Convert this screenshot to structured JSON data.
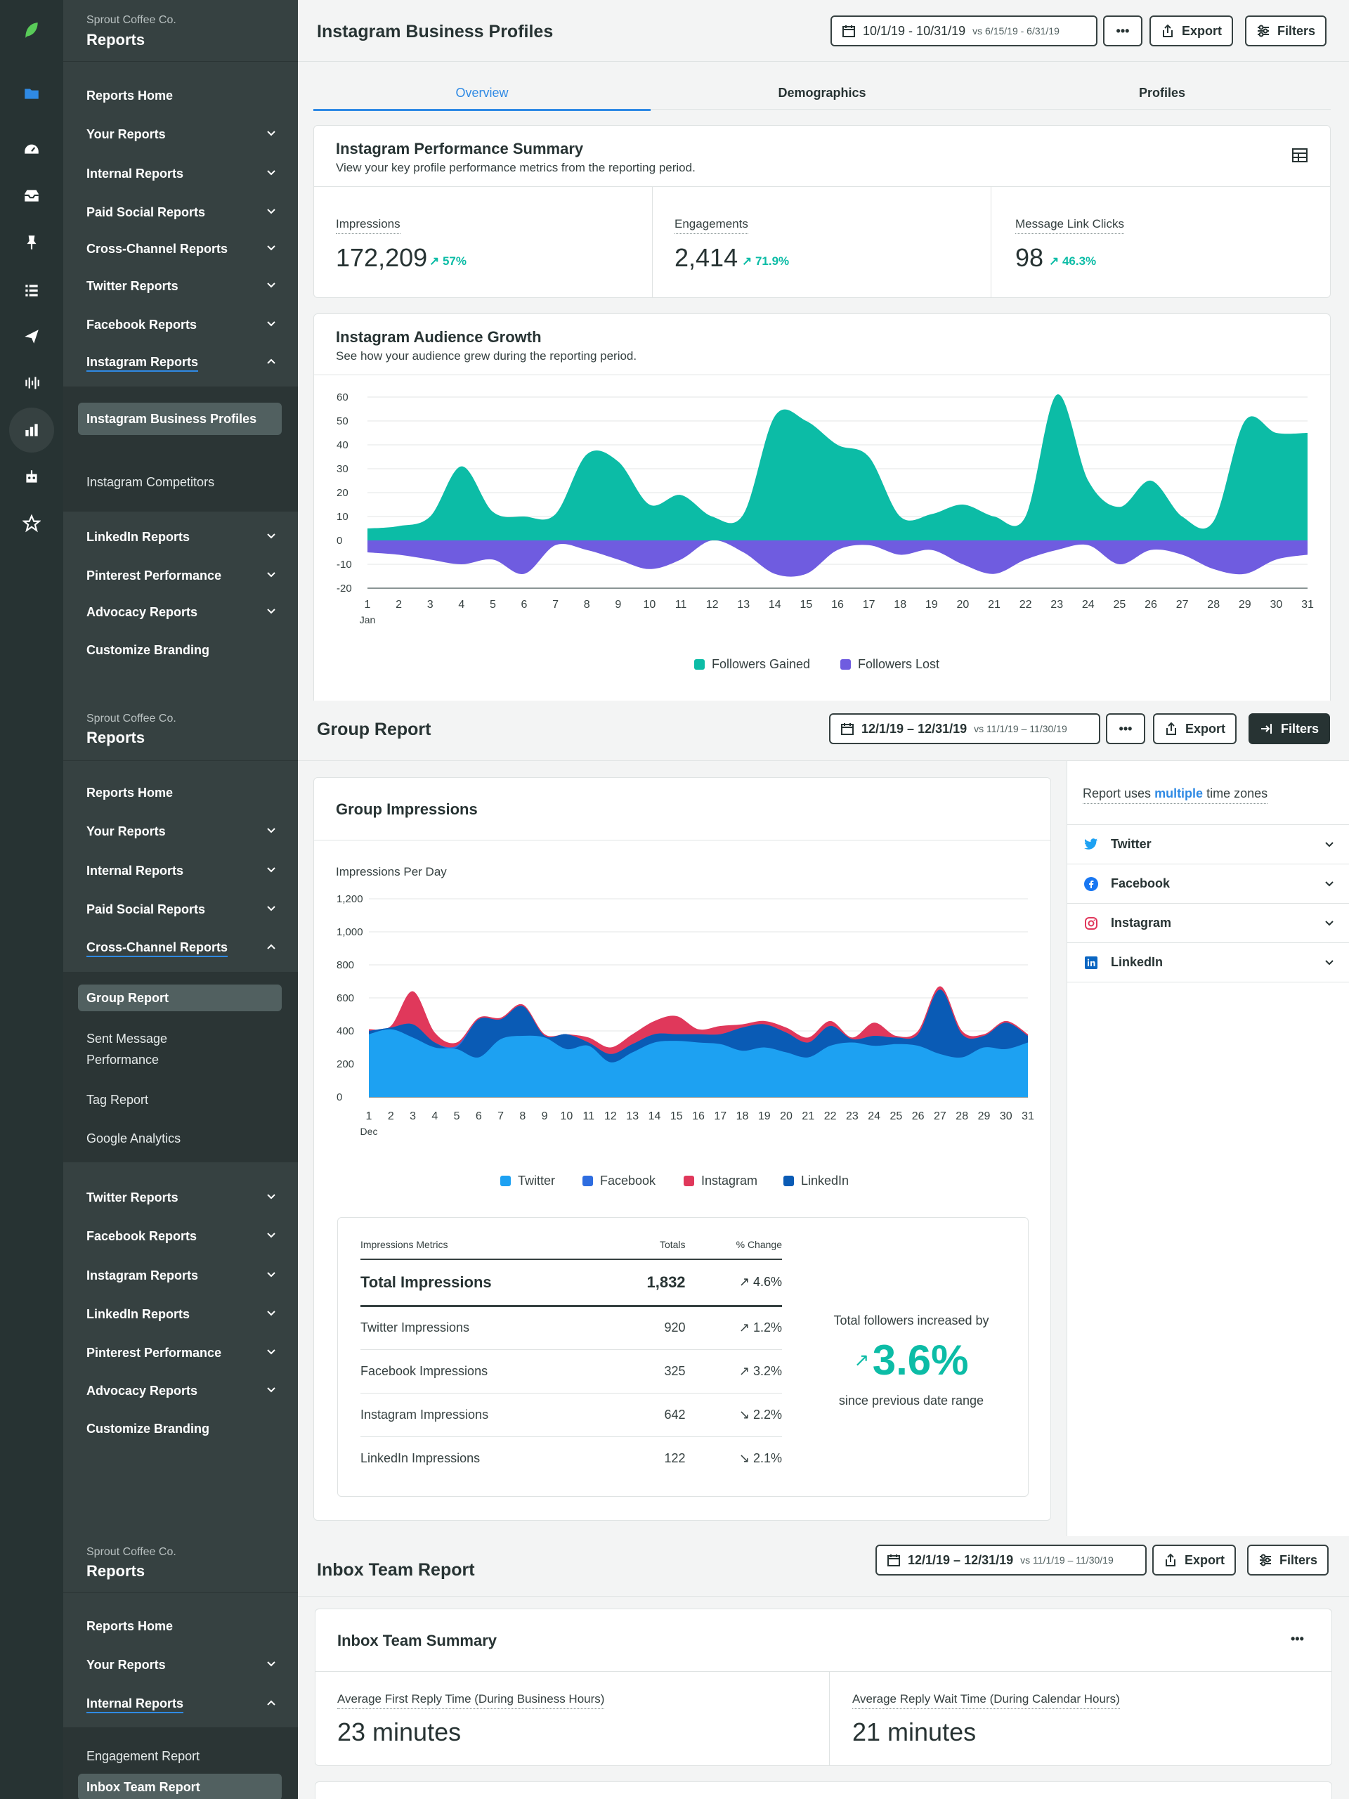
{
  "brand_color": "#59cb59",
  "rail_icons": [
    "sprout-logo-icon",
    "folder-icon",
    "dashboard-icon",
    "inbox-icon",
    "pin-icon",
    "list-icon",
    "send-icon",
    "listening-icon",
    "reports-icon",
    "bot-icon",
    "star-icon"
  ],
  "sections": [
    {
      "sidebar": {
        "company": "Sprout Coffee Co.",
        "title": "Reports",
        "items": [
          "Reports Home",
          "Your Reports",
          "Internal Reports",
          "Paid Social Reports",
          "Cross-Channel Reports",
          "Twitter Reports",
          "Facebook Reports",
          "Instagram Reports"
        ],
        "sub_items": [
          "Instagram Business Profiles",
          "Instagram Competitors"
        ],
        "items_after": [
          "LinkedIn Reports",
          "Pinterest Performance",
          "Advocacy Reports",
          "Customize Branding"
        ]
      },
      "header": {
        "title": "Instagram Business Profiles",
        "date_range": "10/1/19 - 10/31/19",
        "compare_range": "vs 6/15/19 - 6/31/19",
        "export": "Export",
        "filters": "Filters"
      },
      "tabs": [
        "Overview",
        "Demographics",
        "Profiles"
      ],
      "summary": {
        "title": "Instagram Performance Summary",
        "subtitle": "View your key profile performance metrics from the reporting period.",
        "metrics": [
          {
            "label": "Impressions",
            "value": "172,209",
            "change": "57%"
          },
          {
            "label": "Engagements",
            "value": "2,414",
            "change": "71.9%"
          },
          {
            "label": "Message Link Clicks",
            "value": "98",
            "change": "46.3%"
          }
        ]
      },
      "growth": {
        "title": "Instagram Audience Growth",
        "subtitle": "See how your audience grew during the reporting period."
      }
    },
    {
      "sidebar": {
        "company": "Sprout Coffee Co.",
        "title": "Reports",
        "items": [
          "Reports Home",
          "Your Reports",
          "Internal Reports",
          "Paid Social Reports",
          "Cross-Channel Reports"
        ],
        "sub_items": [
          "Group Report",
          "Sent Message Performance",
          "Tag Report",
          "Google Analytics"
        ],
        "items_after": [
          "Twitter Reports",
          "Facebook Reports",
          "Instagram Reports",
          "LinkedIn Reports",
          "Pinterest Performance",
          "Advocacy Reports",
          "Customize Branding"
        ]
      },
      "header": {
        "title": "Group Report",
        "date_range": "12/1/19 – 12/31/19",
        "compare_range": "vs 11/1/19 – 11/30/19",
        "export": "Export",
        "filters": "Filters"
      },
      "impressions": {
        "title": "Group Impressions",
        "chart_subtitle": "Impressions Per Day"
      },
      "timezone_note_pre": "Report uses ",
      "timezone_note_link": "multiple",
      "timezone_note_post": " time zones",
      "networks": [
        "Twitter",
        "Facebook",
        "Instagram",
        "LinkedIn"
      ],
      "metrics_table": {
        "headers": [
          "Impressions Metrics",
          "Totals",
          "% Change"
        ],
        "rows": [
          {
            "label": "Total Impressions",
            "total": "1,832",
            "change": "4.6%",
            "dir": "up"
          },
          {
            "label": "Twitter Impressions",
            "total": "920",
            "change": "1.2%",
            "dir": "up"
          },
          {
            "label": "Facebook Impressions",
            "total": "325",
            "change": "3.2%",
            "dir": "up"
          },
          {
            "label": "Instagram Impressions",
            "total": "642",
            "change": "2.2%",
            "dir": "down"
          },
          {
            "label": "LinkedIn Impressions",
            "total": "122",
            "change": "2.1%",
            "dir": "down"
          }
        ]
      },
      "followers": {
        "pre": "Total followers increased by",
        "value": "3.6%",
        "post": "since previous date range"
      }
    },
    {
      "sidebar": {
        "company": "Sprout Coffee Co.",
        "title": "Reports",
        "items": [
          "Reports Home",
          "Your Reports",
          "Internal Reports"
        ],
        "sub_items": [
          "Engagement Report",
          "Inbox Team Report"
        ]
      },
      "header": {
        "title": "Inbox Team Report",
        "date_range": "12/1/19 – 12/31/19",
        "compare_range": "vs 11/1/19 – 11/30/19",
        "export": "Export",
        "filters": "Filters"
      },
      "team_summary": {
        "title": "Inbox Team Summary",
        "metrics": [
          {
            "label": "Average First Reply Time (During Business Hours)",
            "value": "23 minutes"
          },
          {
            "label": "Average Reply Wait Time (During Calendar Hours)",
            "value": "21 minutes"
          }
        ]
      }
    }
  ],
  "chart_data": [
    {
      "type": "area",
      "x": [
        1,
        2,
        3,
        4,
        5,
        6,
        7,
        8,
        9,
        10,
        11,
        12,
        13,
        14,
        15,
        16,
        17,
        18,
        19,
        20,
        21,
        22,
        23,
        24,
        25,
        26,
        27,
        28,
        29,
        30,
        31
      ],
      "x_tick_first_sub": "Jan",
      "ylim": [
        -20,
        60
      ],
      "yticks": [
        60,
        50,
        40,
        30,
        20,
        10,
        0,
        -10,
        -20
      ],
      "grid": true,
      "legend_position": "bottom",
      "series": [
        {
          "name": "Followers Gained",
          "color": "#0cbca6",
          "values": [
            5,
            6,
            10,
            31,
            12,
            10,
            11,
            36,
            33,
            15,
            19,
            10,
            11,
            52,
            50,
            40,
            35,
            10,
            11,
            15,
            10,
            10,
            61,
            25,
            14,
            25,
            10,
            8,
            50,
            45,
            45
          ]
        },
        {
          "name": "Followers Lost",
          "color": "#6f5ce0",
          "values": [
            -5,
            -6,
            -8,
            -10,
            -8,
            -14,
            -2,
            -4,
            -8,
            -12,
            -8,
            0,
            -5,
            -14,
            -14,
            -4,
            -2,
            -6,
            -4,
            -10,
            -14,
            -8,
            -4,
            -2,
            -10,
            -4,
            -6,
            -12,
            -14,
            -8,
            -6
          ]
        }
      ]
    },
    {
      "type": "area",
      "x": [
        1,
        2,
        3,
        4,
        5,
        6,
        7,
        8,
        9,
        10,
        11,
        12,
        13,
        14,
        15,
        16,
        17,
        18,
        19,
        20,
        21,
        22,
        23,
        24,
        25,
        26,
        27,
        28,
        29,
        30,
        31
      ],
      "x_tick_first_sub": "Dec",
      "ylim": [
        0,
        1200
      ],
      "yticks": [
        "1,200",
        "1,000",
        "800",
        "600",
        "400",
        "200",
        "0"
      ],
      "grid": true,
      "legend_position": "bottom",
      "series": [
        {
          "name": "Twitter",
          "color": "#1da1f2",
          "values": [
            380,
            410,
            360,
            300,
            290,
            240,
            350,
            370,
            360,
            290,
            310,
            210,
            270,
            330,
            340,
            330,
            320,
            280,
            300,
            270,
            240,
            310,
            330,
            310,
            320,
            310,
            260,
            240,
            300,
            290,
            330
          ]
        },
        {
          "name": "Facebook",
          "color": "#2e6de0",
          "values": [
            400,
            420,
            440,
            330,
            310,
            470,
            470,
            550,
            370,
            380,
            330,
            260,
            320,
            380,
            380,
            380,
            380,
            420,
            440,
            390,
            330,
            430,
            350,
            370,
            360,
            380,
            650,
            380,
            370,
            450,
            370
          ]
        },
        {
          "name": "Instagram",
          "color": "#e0385b",
          "values": [
            410,
            430,
            640,
            390,
            330,
            480,
            480,
            560,
            380,
            380,
            360,
            300,
            380,
            460,
            490,
            410,
            430,
            440,
            460,
            420,
            360,
            460,
            360,
            450,
            370,
            400,
            670,
            400,
            380,
            460,
            380
          ]
        },
        {
          "name": "LinkedIn",
          "color": "#0a5bb5",
          "values": [
            400,
            420,
            440,
            330,
            300,
            470,
            470,
            550,
            370,
            380,
            330,
            260,
            320,
            380,
            380,
            380,
            380,
            420,
            440,
            390,
            330,
            430,
            350,
            370,
            360,
            380,
            650,
            380,
            370,
            450,
            370
          ]
        }
      ]
    }
  ]
}
